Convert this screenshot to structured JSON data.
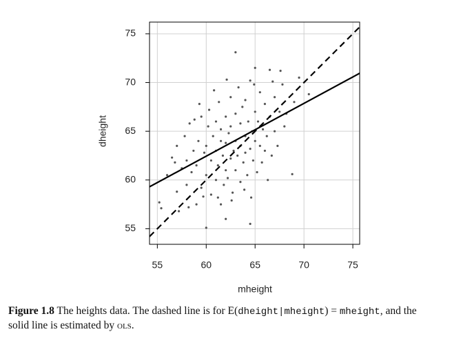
{
  "chart_data": {
    "type": "scatter",
    "xlabel": "mheight",
    "ylabel": "dheight",
    "xlim": [
      54.2,
      75.7
    ],
    "ylim": [
      53.4,
      76.2
    ],
    "xticks": [
      55,
      60,
      65,
      70,
      75
    ],
    "yticks": [
      55,
      60,
      65,
      70,
      75
    ],
    "grid": true,
    "series": [
      {
        "kind": "points",
        "color": "#555555",
        "x": [
          55.2,
          55.4,
          56,
          56.5,
          57,
          57,
          57.5,
          57.8,
          58,
          58,
          58.3,
          58.5,
          58.7,
          59,
          59,
          59.2,
          59.5,
          59.5,
          59.8,
          60,
          60,
          60,
          60.2,
          60.3,
          60.5,
          60.5,
          60.7,
          61,
          61,
          61,
          61.2,
          61.3,
          61.5,
          61.5,
          61.5,
          61.7,
          61.8,
          62,
          62,
          62,
          62,
          62.2,
          62.3,
          62.5,
          62.5,
          62.5,
          62.7,
          62.8,
          63,
          63,
          63,
          63,
          63.2,
          63.3,
          63.5,
          63.5,
          63.5,
          63.7,
          63.8,
          64,
          64,
          64,
          64.2,
          64.3,
          64.5,
          64.5,
          64.5,
          64.7,
          64.8,
          65,
          65,
          65,
          65.2,
          65.3,
          65.5,
          65.5,
          65.7,
          65.8,
          66,
          66,
          66.2,
          66.5,
          66.5,
          66.7,
          67,
          67,
          67.3,
          67.5,
          67.8,
          68,
          68.2,
          68.8,
          69,
          69.5,
          57.2,
          58.2,
          59.7,
          61.2,
          62.6,
          63.9,
          64.6,
          66.3,
          60.8,
          62.1,
          64.9,
          66.8,
          59.3,
          58.8,
          56.8,
          67.6,
          70.5
        ],
        "values": [
          57.7,
          57.1,
          60.5,
          62.3,
          58.8,
          63.5,
          61.2,
          64.5,
          59.5,
          62,
          65.8,
          60.8,
          63,
          57.5,
          61.5,
          64,
          66.5,
          59.2,
          62.8,
          55.1,
          60.5,
          63.5,
          65.5,
          67.2,
          58.5,
          62,
          64.5,
          60,
          63,
          66,
          61.5,
          68,
          57.5,
          64,
          65.2,
          62.5,
          59.5,
          56,
          61,
          63.8,
          66.5,
          60.2,
          64.8,
          62.2,
          65.5,
          68.5,
          58.7,
          63,
          73.1,
          61,
          64,
          66.8,
          62.5,
          69.5,
          59.8,
          63.5,
          65.8,
          67.5,
          61.8,
          64.5,
          62.8,
          68.2,
          60.5,
          66,
          55.5,
          63.2,
          70.2,
          65,
          62,
          71.5,
          64,
          67,
          60.8,
          66,
          63.5,
          69,
          61.8,
          65.2,
          67.8,
          63,
          64.5,
          71.3,
          66.5,
          62.5,
          68.5,
          65,
          63.5,
          67,
          69.8,
          65.5,
          66.8,
          60.6,
          68,
          70.5,
          56.8,
          57.2,
          58.3,
          58.2,
          57.9,
          59,
          58.2,
          60,
          69.2,
          70.3,
          69.8,
          70.1,
          67.8,
          66.2,
          61.8,
          71.2,
          68.8
        ]
      },
      {
        "kind": "line",
        "style": "dashed",
        "color": "#000000",
        "x": [
          54.2,
          75.7
        ],
        "values": [
          54.2,
          75.7
        ]
      },
      {
        "kind": "line",
        "style": "solid",
        "color": "#000000",
        "x": [
          54.2,
          75.7
        ],
        "values": [
          59.3,
          70.95
        ]
      }
    ]
  },
  "caption": {
    "lines": [
      [
        {
          "text": "Figure 1.8",
          "font": "bold"
        },
        {
          "text": " The heights data. The dashed line is for E(",
          "font": "serif"
        },
        {
          "text": "dheight|mheight",
          "font": "mono"
        },
        {
          "text": ") = ",
          "font": "serif"
        },
        {
          "text": "mheight",
          "font": "mono"
        },
        {
          "text": ", and the",
          "font": "serif"
        }
      ],
      [
        {
          "text": "solid line is estimated by ",
          "font": "serif"
        },
        {
          "text": "ols",
          "font": "sc"
        },
        {
          "text": ".",
          "font": "serif"
        }
      ]
    ]
  }
}
